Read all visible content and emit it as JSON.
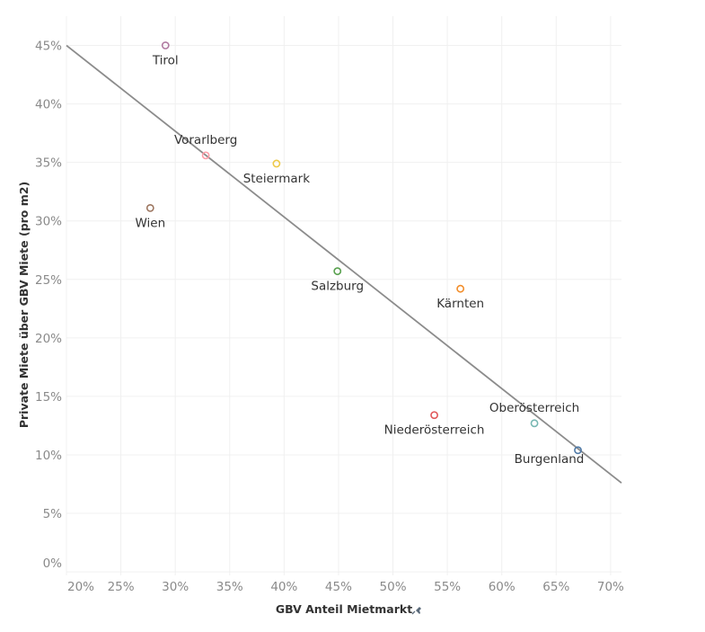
{
  "chart_data": {
    "type": "scatter",
    "title": "",
    "xlabel": "GBV Anteil Mietmarkt",
    "xlabel_icon": "pin-icon",
    "ylabel": "Private Miete über GBV Miete (pro m2)",
    "xlim": [
      20,
      71
    ],
    "ylim": [
      -0.3,
      47.5
    ],
    "x_ticks": [
      20,
      25,
      30,
      35,
      40,
      45,
      50,
      55,
      60,
      65,
      70
    ],
    "x_tick_labels": [
      "20%",
      "25%",
      "30%",
      "35%",
      "40%",
      "45%",
      "50%",
      "55%",
      "60%",
      "65%",
      "70%"
    ],
    "y_ticks": [
      0,
      5,
      10,
      15,
      20,
      25,
      30,
      35,
      40,
      45
    ],
    "y_tick_labels": [
      "0%",
      "5%",
      "10%",
      "15%",
      "20%",
      "25%",
      "30%",
      "35%",
      "40%",
      "45%"
    ],
    "grid": true,
    "marker": "open-circle",
    "points": [
      {
        "label": "Tirol",
        "x": 29.1,
        "y": 45.0,
        "color": "#b07aa1",
        "label_pos": "below"
      },
      {
        "label": "Vorarlberg",
        "x": 32.8,
        "y": 35.6,
        "color": "#ff9da7",
        "label_pos": "above"
      },
      {
        "label": "Steiermark",
        "x": 39.3,
        "y": 34.9,
        "color": "#edc948",
        "label_pos": "below"
      },
      {
        "label": "Wien",
        "x": 27.7,
        "y": 31.1,
        "color": "#9c755f",
        "label_pos": "below"
      },
      {
        "label": "Salzburg",
        "x": 44.9,
        "y": 25.7,
        "color": "#59a14f",
        "label_pos": "below"
      },
      {
        "label": "Kärnten",
        "x": 56.2,
        "y": 24.2,
        "color": "#f28e2b",
        "label_pos": "below"
      },
      {
        "label": "Niederösterreich",
        "x": 53.8,
        "y": 13.4,
        "color": "#e15759",
        "label_pos": "below"
      },
      {
        "label": "Oberösterreich",
        "x": 63.0,
        "y": 12.7,
        "color": "#76b7b2",
        "label_pos": "above"
      },
      {
        "label": "Burgenland",
        "x": 67.0,
        "y": 10.4,
        "color": "#4e79a7",
        "label_pos": "below-left"
      }
    ],
    "trendline": {
      "type": "linear",
      "color": "#8c8c8c",
      "points": [
        {
          "x": 20,
          "y": 45.0
        },
        {
          "x": 71,
          "y": 7.6
        }
      ]
    }
  }
}
